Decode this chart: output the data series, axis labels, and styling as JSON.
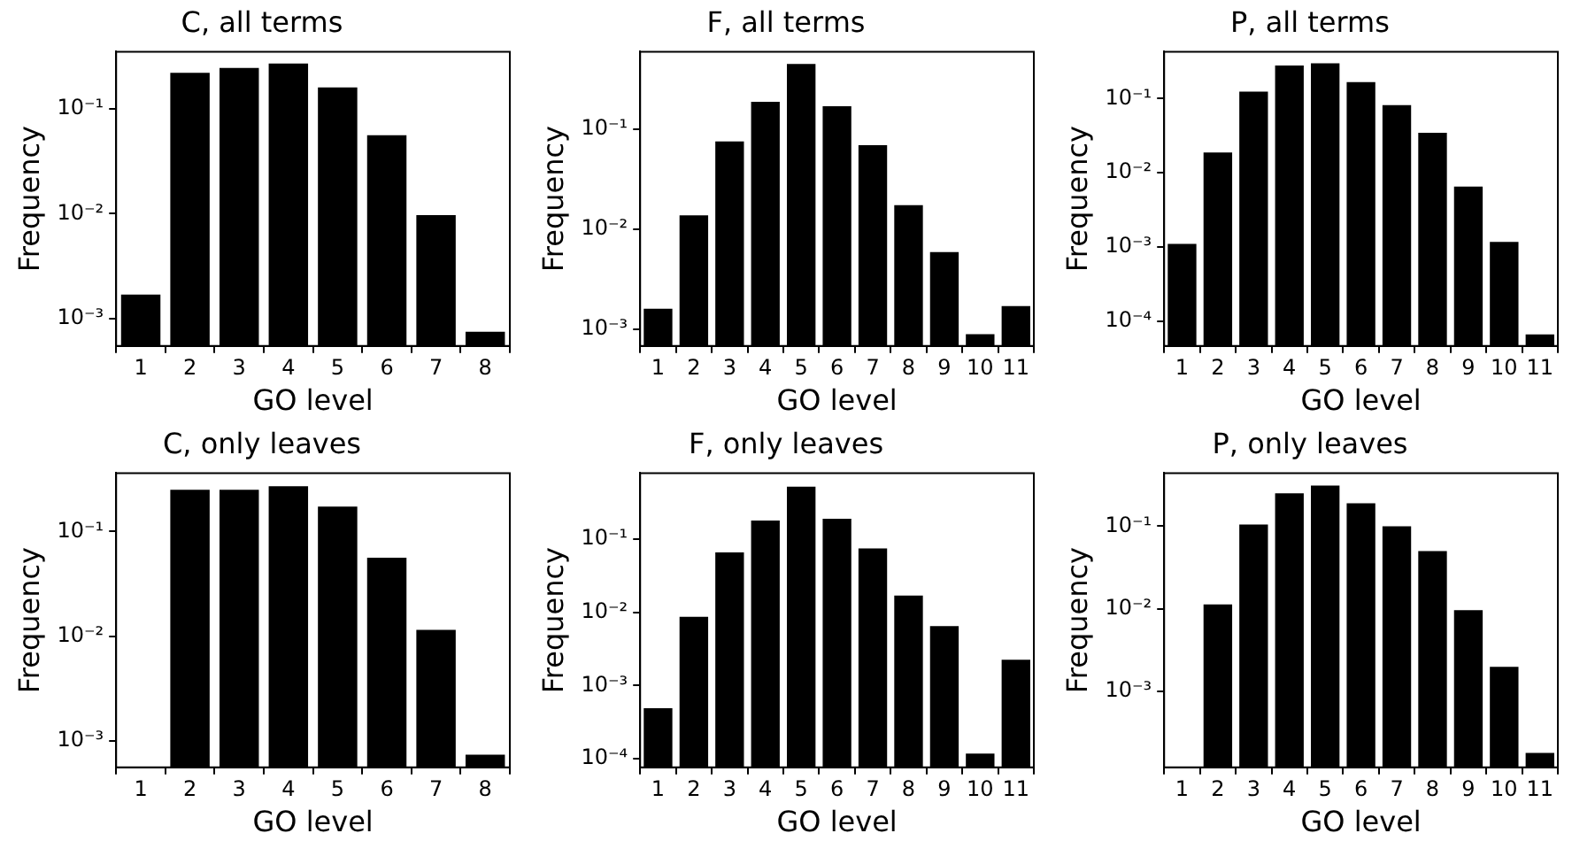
{
  "chart_data": [
    {
      "type": "bar",
      "title": "C, all terms",
      "xlabel": "GO level",
      "ylabel": "Frequency",
      "categories": [
        "1",
        "2",
        "3",
        "4",
        "5",
        "6",
        "7",
        "8"
      ],
      "values": [
        0.0017,
        0.22,
        0.245,
        0.27,
        0.16,
        0.056,
        0.0097,
        0.00075
      ],
      "color": "#000000",
      "log": true,
      "grid": false,
      "ylim": [
        0.00055,
        0.35
      ],
      "yticks": [
        {
          "value": 0.001,
          "label": "10⁻³"
        },
        {
          "value": 0.01,
          "label": "10⁻²"
        },
        {
          "value": 0.1,
          "label": "10⁻¹"
        }
      ]
    },
    {
      "type": "bar",
      "title": "F, all terms",
      "xlabel": "GO level",
      "ylabel": "Frequency",
      "categories": [
        "1",
        "2",
        "3",
        "4",
        "5",
        "6",
        "7",
        "8",
        "9",
        "10",
        "11"
      ],
      "values": [
        0.0016,
        0.0137,
        0.075,
        0.186,
        0.445,
        0.168,
        0.0686,
        0.0173,
        0.0059,
        0.00089,
        0.0017
      ],
      "color": "#000000",
      "log": true,
      "grid": false,
      "ylim": [
        0.00068,
        0.59
      ],
      "yticks": [
        {
          "value": 0.001,
          "label": "10⁻³"
        },
        {
          "value": 0.01,
          "label": "10⁻²"
        },
        {
          "value": 0.1,
          "label": "10⁻¹"
        }
      ]
    },
    {
      "type": "bar",
      "title": "P, all terms",
      "xlabel": "GO level",
      "ylabel": "Frequency",
      "categories": [
        "1",
        "2",
        "3",
        "4",
        "5",
        "6",
        "7",
        "8",
        "9",
        "10",
        "11"
      ],
      "values": [
        0.0011,
        0.0188,
        0.124,
        0.28,
        0.3,
        0.167,
        0.082,
        0.0345,
        0.0065,
        0.00117,
        6.6e-05
      ],
      "color": "#000000",
      "log": true,
      "grid": false,
      "ylim": [
        4.6e-05,
        0.43
      ],
      "yticks": [
        {
          "value": 0.0001,
          "label": "10⁻⁴"
        },
        {
          "value": 0.001,
          "label": "10⁻³"
        },
        {
          "value": 0.01,
          "label": "10⁻²"
        },
        {
          "value": 0.1,
          "label": "10⁻¹"
        }
      ]
    },
    {
      "type": "bar",
      "title": "C, only leaves",
      "xlabel": "GO level",
      "ylabel": "Frequency",
      "categories": [
        "1",
        "2",
        "3",
        "4",
        "5",
        "6",
        "7",
        "8"
      ],
      "values": [
        null,
        0.25,
        0.25,
        0.27,
        0.172,
        0.056,
        0.0115,
        0.00074
      ],
      "color": "#000000",
      "log": true,
      "grid": false,
      "ylim": [
        0.00056,
        0.36
      ],
      "yticks": [
        {
          "value": 0.001,
          "label": "10⁻³"
        },
        {
          "value": 0.01,
          "label": "10⁻²"
        },
        {
          "value": 0.1,
          "label": "10⁻¹"
        }
      ]
    },
    {
      "type": "bar",
      "title": "F, only leaves",
      "xlabel": "GO level",
      "ylabel": "Frequency",
      "categories": [
        "1",
        "2",
        "3",
        "4",
        "5",
        "6",
        "7",
        "8",
        "9",
        "10",
        "11"
      ],
      "values": [
        0.00049,
        0.0087,
        0.066,
        0.18,
        0.52,
        0.19,
        0.0745,
        0.017,
        0.0065,
        0.000117,
        0.00224
      ],
      "color": "#000000",
      "log": true,
      "grid": false,
      "ylim": [
        7.6e-05,
        0.8
      ],
      "yticks": [
        {
          "value": 0.0001,
          "label": "10⁻⁴"
        },
        {
          "value": 0.001,
          "label": "10⁻³"
        },
        {
          "value": 0.01,
          "label": "10⁻²"
        },
        {
          "value": 0.1,
          "label": "10⁻¹"
        }
      ]
    },
    {
      "type": "bar",
      "title": "P, only leaves",
      "xlabel": "GO level",
      "ylabel": "Frequency",
      "categories": [
        "1",
        "2",
        "3",
        "4",
        "5",
        "6",
        "7",
        "8",
        "9",
        "10",
        "11"
      ],
      "values": [
        null,
        0.0113,
        0.105,
        0.25,
        0.31,
        0.19,
        0.1,
        0.05,
        0.0096,
        0.00198,
        0.00018
      ],
      "color": "#000000",
      "log": true,
      "grid": false,
      "ylim": [
        0.00012,
        0.44
      ],
      "yticks": [
        {
          "value": 0.001,
          "label": "10⁻³"
        },
        {
          "value": 0.01,
          "label": "10⁻²"
        },
        {
          "value": 0.1,
          "label": "10⁻¹"
        }
      ]
    }
  ]
}
